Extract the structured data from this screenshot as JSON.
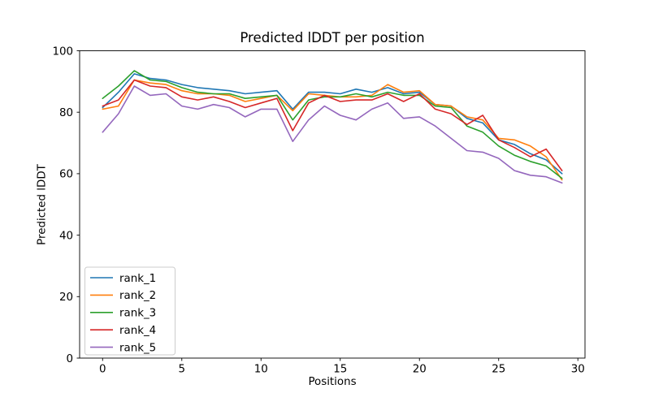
{
  "chart_data": {
    "type": "line",
    "title": "Predicted lDDT per position",
    "xlabel": "Positions",
    "ylabel": "Predicted lDDT",
    "xlim": [
      -1.45,
      30.45
    ],
    "ylim": [
      0,
      100
    ],
    "xticks": [
      0,
      5,
      10,
      15,
      20,
      25,
      30
    ],
    "yticks": [
      0,
      20,
      40,
      60,
      80,
      100
    ],
    "grid": false,
    "legend_position": "lower left",
    "x": [
      0,
      1,
      2,
      3,
      4,
      5,
      6,
      7,
      8,
      9,
      10,
      11,
      12,
      13,
      14,
      15,
      16,
      17,
      18,
      19,
      20,
      21,
      22,
      23,
      24,
      25,
      26,
      27,
      28,
      29
    ],
    "series": [
      {
        "name": "rank_1",
        "color": "#1f77b4",
        "values": [
          81.5,
          86.5,
          92.5,
          91,
          90.5,
          89,
          88,
          87.5,
          87,
          86,
          86.5,
          87,
          81,
          86.5,
          86.5,
          86,
          87.5,
          86.5,
          88,
          86,
          86.5,
          82.5,
          82,
          78,
          76.5,
          71,
          69.5,
          66.5,
          64.5,
          60
        ]
      },
      {
        "name": "rank_2",
        "color": "#ff7f0e",
        "values": [
          81,
          82,
          90.5,
          89.5,
          89,
          87,
          86,
          86,
          85.5,
          83.5,
          84.5,
          85.5,
          80.5,
          86,
          85.5,
          85,
          85,
          85.5,
          89,
          86.5,
          87,
          82.5,
          82,
          78.5,
          77.5,
          71.5,
          71,
          69,
          65.5,
          58
        ]
      },
      {
        "name": "rank_3",
        "color": "#2ca02c",
        "values": [
          84.5,
          88.5,
          93.5,
          90.5,
          90,
          88,
          86.5,
          86,
          86,
          84.5,
          85,
          85.5,
          77.5,
          84,
          85,
          85,
          86,
          85,
          86.5,
          85.5,
          85.5,
          82,
          81.5,
          75.5,
          73.5,
          69,
          66,
          64,
          62.5,
          58.5
        ]
      },
      {
        "name": "rank_4",
        "color": "#d62728",
        "values": [
          82,
          84,
          90.5,
          88.5,
          88,
          85,
          84,
          85,
          83.5,
          81.5,
          83,
          84.5,
          74,
          83,
          85.5,
          83.5,
          84,
          84,
          86,
          83.5,
          86,
          81,
          79.5,
          76,
          79,
          71,
          68.5,
          65.5,
          68,
          61
        ]
      },
      {
        "name": "rank_5",
        "color": "#9467bd",
        "values": [
          73.5,
          79.5,
          88.5,
          85.5,
          86,
          82,
          81,
          82.5,
          81.5,
          78.5,
          81,
          81,
          70.5,
          77.5,
          82,
          79,
          77.5,
          81,
          83,
          78,
          78.5,
          75.5,
          71.5,
          67.5,
          67,
          65,
          61,
          59.5,
          59,
          57
        ]
      }
    ]
  }
}
